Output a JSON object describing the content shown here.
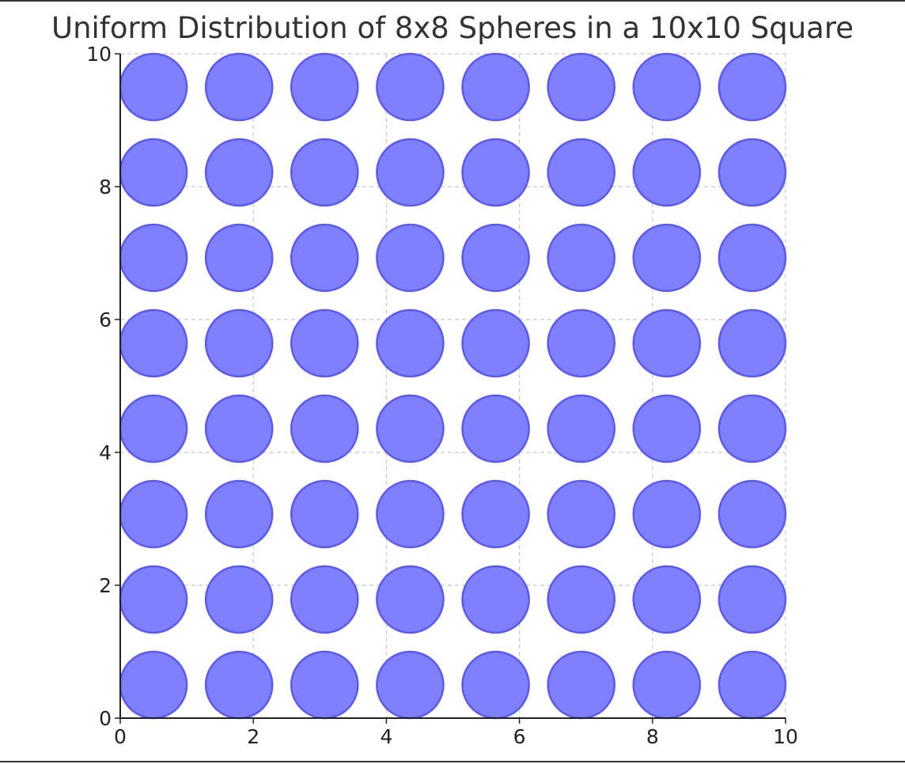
{
  "chart_data": {
    "type": "scatter",
    "title": "Uniform Distribution of 8x8 Spheres in a 10x10 Square",
    "xlabel": "",
    "ylabel": "",
    "xlim": [
      0,
      10
    ],
    "ylim": [
      0,
      10
    ],
    "grid": true,
    "x_ticks": [
      "0",
      "2",
      "4",
      "6",
      "8",
      "10"
    ],
    "y_ticks": [
      "0",
      "2",
      "4",
      "6",
      "8",
      "10"
    ],
    "sphere_radius": 0.5,
    "x_centers": [
      0.5,
      1.786,
      3.071,
      4.357,
      5.643,
      6.929,
      8.214,
      9.5
    ],
    "y_centers": [
      0.5,
      1.786,
      3.071,
      4.357,
      5.643,
      6.929,
      8.214,
      9.5
    ],
    "colors": {
      "fill": "#8080ff",
      "edge": "#5a5af0",
      "axis": "#222222",
      "grid": "#c8c8c8"
    }
  }
}
